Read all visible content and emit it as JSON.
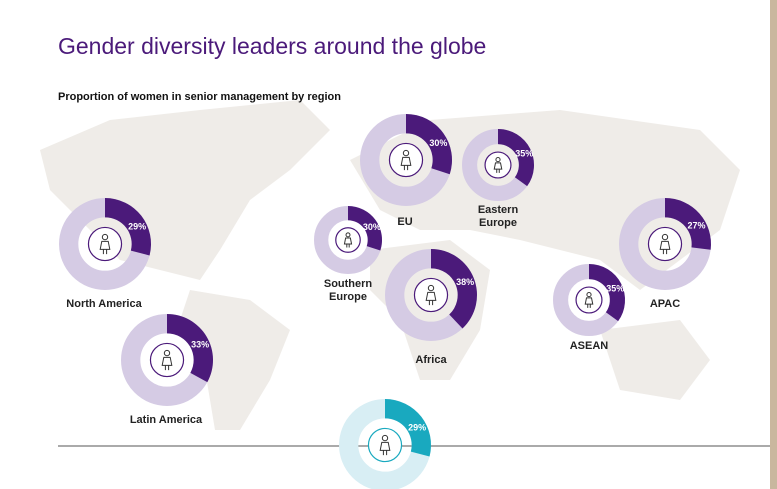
{
  "chart_data": {
    "type": "donut",
    "title": "Gender diversity leaders around the globe",
    "subtitle": "Proportion of women in senior management by region",
    "categories": [
      "EU",
      "Eastern Europe",
      "North America",
      "Southern Europe",
      "Africa",
      "APAC",
      "ASEAN",
      "Latin America",
      null
    ],
    "values": [
      30,
      35,
      29,
      30,
      38,
      27,
      35,
      33,
      29
    ],
    "value_labels": [
      "30%",
      "35%",
      "29%",
      "30%",
      "38%",
      "27%",
      "35%",
      "33%",
      "29%"
    ],
    "colors": [
      "#4b1a7a",
      "#4b1a7a",
      "#4b1a7a",
      "#4b1a7a",
      "#4b1a7a",
      "#4b1a7a",
      "#4b1a7a",
      "#4b1a7a",
      "#19a9bf"
    ],
    "track_colors": [
      "#d5cbe4",
      "#d5cbe4",
      "#d5cbe4",
      "#d5cbe4",
      "#d5cbe4",
      "#d5cbe4",
      "#d5cbe4",
      "#d5cbe4",
      "#d8eef4"
    ]
  }
}
